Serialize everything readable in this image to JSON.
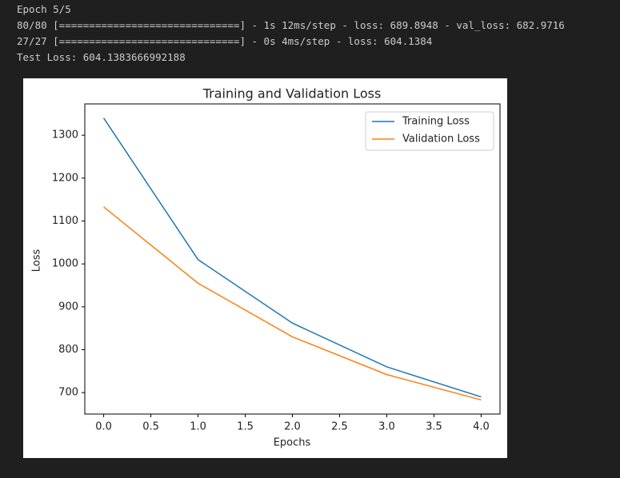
{
  "console": {
    "lines": [
      "Epoch 5/5",
      "80/80 [==============================] - 1s 12ms/step - loss: 689.8948 - val_loss: 682.9716",
      "27/27 [==============================] - 0s 4ms/step - loss: 604.1384",
      "Test Loss: 604.1383666992188"
    ]
  },
  "chart_data": {
    "type": "line",
    "title": "Training and Validation Loss",
    "x_label": "Epochs",
    "y_label": "Loss",
    "x": [
      0,
      1,
      2,
      3,
      4
    ],
    "series": [
      {
        "name": "Training Loss",
        "color": "#1f77b4",
        "values": [
          1340,
          1010,
          862,
          760,
          689.8948
        ]
      },
      {
        "name": "Validation Loss",
        "color": "#ff7f0e",
        "values": [
          1133,
          955,
          830,
          742,
          682.9716
        ]
      }
    ],
    "xlim": [
      -0.2,
      4.2
    ],
    "xticks": [
      {
        "value": 0,
        "label": "0.0"
      },
      {
        "value": 0.5,
        "label": "0.5"
      },
      {
        "value": 1,
        "label": "1.0"
      },
      {
        "value": 1.5,
        "label": "1.5"
      },
      {
        "value": 2,
        "label": "2.0"
      },
      {
        "value": 2.5,
        "label": "2.5"
      },
      {
        "value": 3,
        "label": "3.0"
      },
      {
        "value": 3.5,
        "label": "3.5"
      },
      {
        "value": 4,
        "label": "4.0"
      }
    ],
    "ylim": [
      650,
      1373
    ],
    "yticks": [
      700,
      800,
      900,
      1000,
      1100,
      1200,
      1300
    ],
    "grid": false,
    "legend": "upper right"
  }
}
